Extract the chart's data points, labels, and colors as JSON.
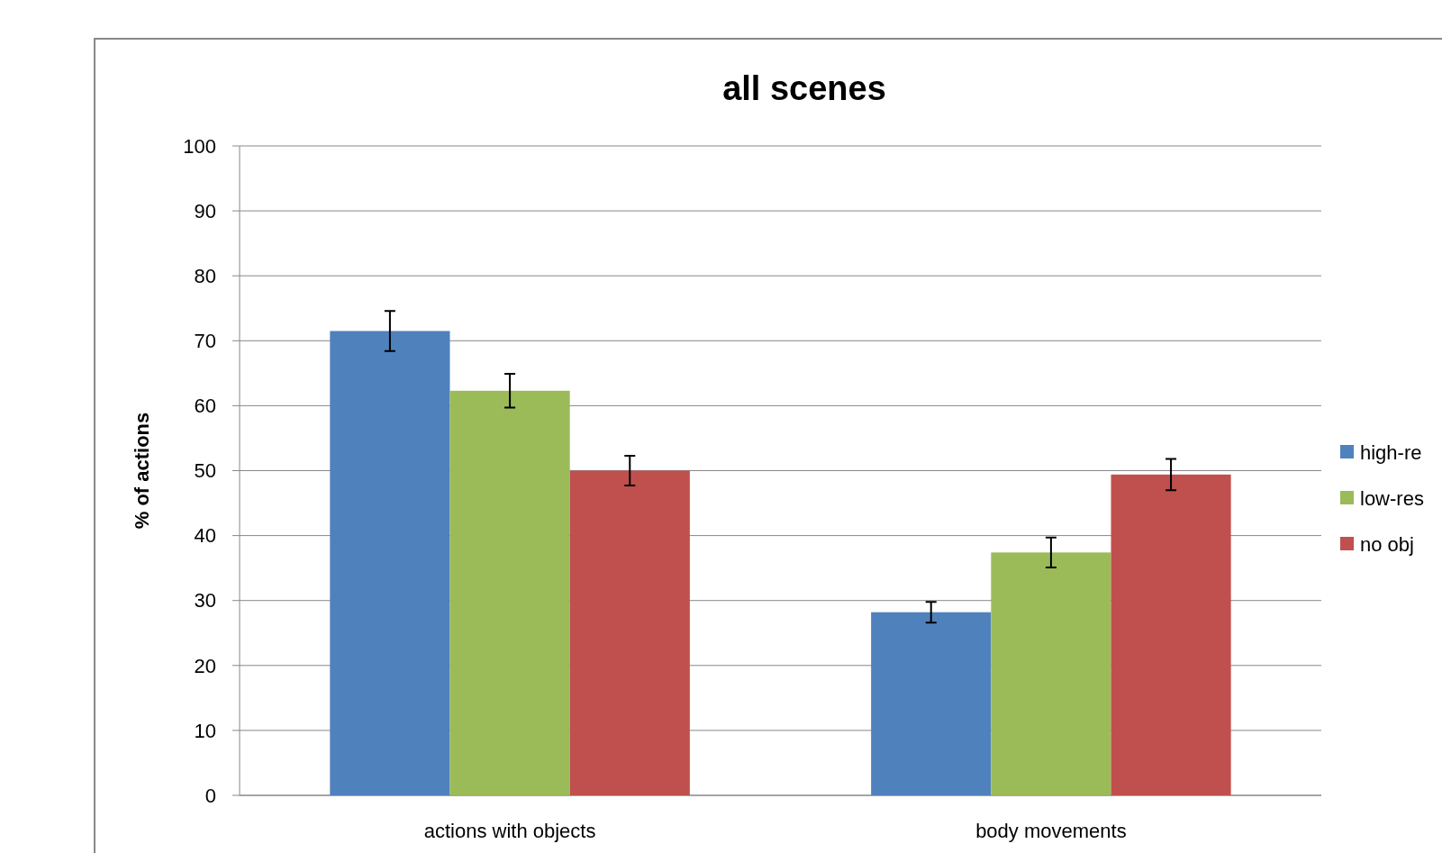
{
  "chart_data": {
    "type": "bar",
    "title": "all scenes",
    "ylabel": "% of actions",
    "categories": [
      "actions with objects",
      "body movements"
    ],
    "series": [
      {
        "name": "high-re",
        "color": "#4f81bd",
        "values": [
          71.5,
          28.2
        ],
        "errors": [
          3.1,
          1.6
        ]
      },
      {
        "name": "low-res",
        "color": "#9bbb59",
        "values": [
          62.3,
          37.4
        ],
        "errors": [
          2.6,
          2.3
        ]
      },
      {
        "name": "no obj",
        "color": "#c0504d",
        "values": [
          50.0,
          49.4
        ],
        "errors": [
          2.3,
          2.4
        ]
      }
    ],
    "ylim": [
      0,
      100
    ],
    "yticks": [
      0,
      10,
      20,
      30,
      40,
      50,
      60,
      70,
      80,
      90,
      100
    ],
    "grid": "y",
    "legend": "right"
  }
}
